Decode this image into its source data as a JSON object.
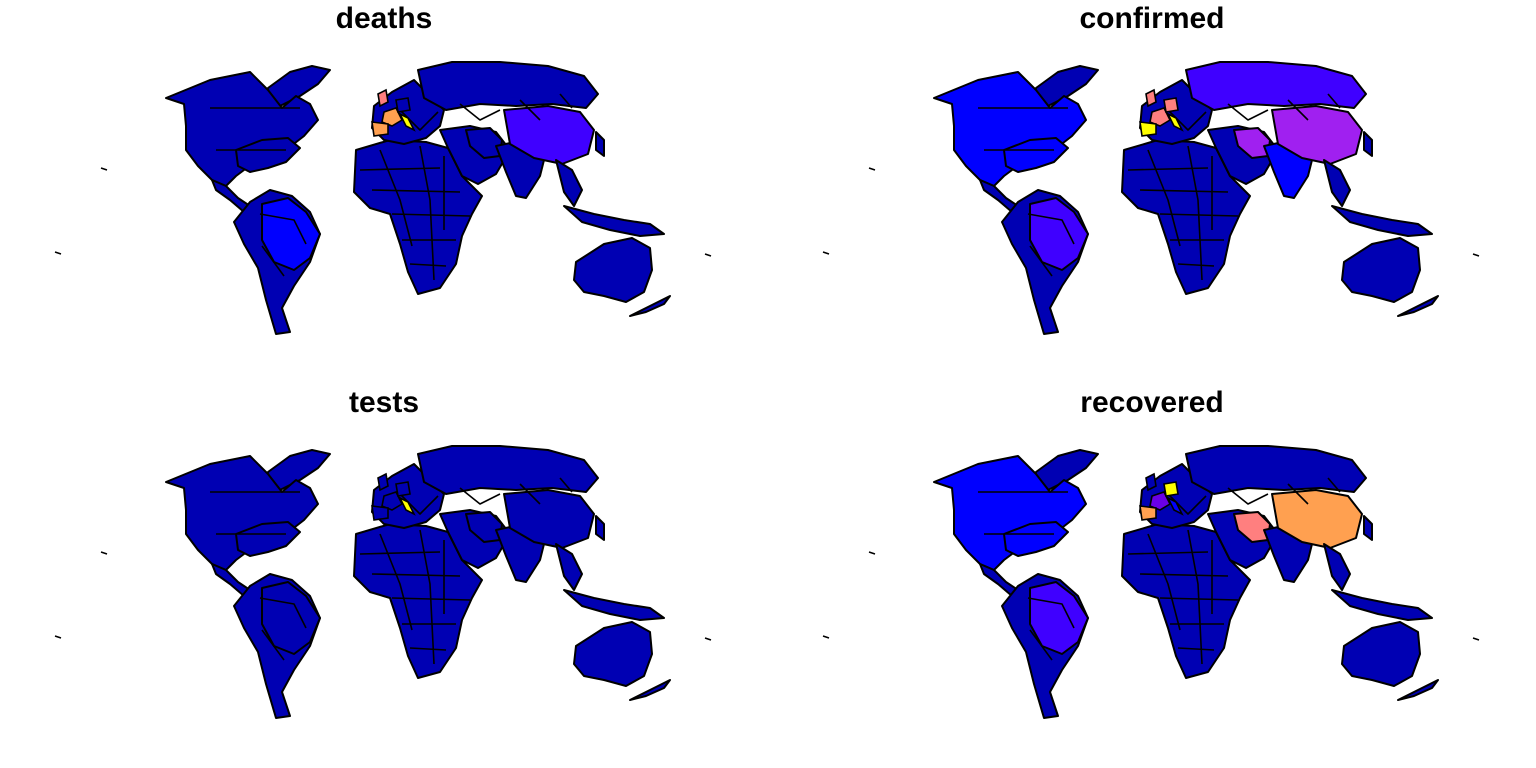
{
  "palette": {
    "low": "#0000b3",
    "low2": "#0000ff",
    "mid": "#3f00ff",
    "mid2": "#6a00e6",
    "violet": "#a020f0",
    "pink": "#ff7f7f",
    "orange": "#ffa050",
    "yellow": "#ffff00",
    "outline": "#000000"
  },
  "panels": [
    {
      "id": "deaths",
      "title": "deaths",
      "regions": {
        "north_america": "low",
        "south_america": "low",
        "brazil": "low2",
        "africa": "low",
        "europe": "low",
        "russia": "low",
        "china": "mid",
        "india": "low",
        "iran": "low",
        "australia": "low",
        "greenland": "low",
        "italy": "yellow",
        "spain": "orange",
        "france": "orange",
        "uk": "pink",
        "germany": "low",
        "usa_east": "low"
      }
    },
    {
      "id": "confirmed",
      "title": "confirmed",
      "regions": {
        "north_america": "low2",
        "south_america": "low",
        "brazil": "mid",
        "africa": "low",
        "europe": "low",
        "russia": "mid",
        "china": "violet",
        "india": "low2",
        "iran": "violet",
        "australia": "low",
        "greenland": "low",
        "italy": "yellow",
        "spain": "yellow",
        "france": "pink",
        "uk": "pink",
        "germany": "pink",
        "usa_east": "low2"
      }
    },
    {
      "id": "tests",
      "title": "tests",
      "regions": {
        "north_america": "low",
        "south_america": "low",
        "brazil": "low",
        "africa": "low",
        "europe": "low",
        "russia": "low",
        "china": "low",
        "india": "low",
        "iran": "low",
        "australia": "low",
        "greenland": "low",
        "italy": "yellow",
        "spain": "low",
        "france": "low",
        "uk": "low",
        "germany": "low",
        "usa_east": "low"
      }
    },
    {
      "id": "recovered",
      "title": "recovered",
      "regions": {
        "north_america": "low2",
        "south_america": "low",
        "brazil": "mid",
        "africa": "low",
        "europe": "low",
        "russia": "low",
        "china": "orange",
        "india": "low",
        "iran": "pink",
        "australia": "low",
        "greenland": "low",
        "italy": "low2",
        "spain": "orange",
        "france": "mid2",
        "uk": "low",
        "germany": "yellow",
        "usa_east": "low2"
      }
    }
  ]
}
